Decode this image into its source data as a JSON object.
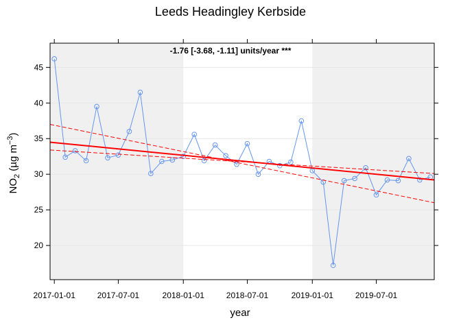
{
  "chart_data": {
    "type": "line",
    "title": "Leeds Headingley Kerbside",
    "annotation": "-1.76 [-3.68, -1.11] units/year ***",
    "annotation_color": "#007a00",
    "xlabel": "year",
    "ylabel_parts": [
      "NO",
      "2",
      " (µg m",
      "−3",
      ")"
    ],
    "x": [
      "2017-01-01",
      "2017-02-01",
      "2017-03-01",
      "2017-04-01",
      "2017-05-01",
      "2017-06-01",
      "2017-07-01",
      "2017-08-01",
      "2017-09-01",
      "2017-10-01",
      "2017-11-01",
      "2017-12-01",
      "2018-01-01",
      "2018-02-01",
      "2018-03-01",
      "2018-04-01",
      "2018-05-01",
      "2018-06-01",
      "2018-07-01",
      "2018-08-01",
      "2018-09-01",
      "2018-10-01",
      "2018-11-01",
      "2018-12-01",
      "2019-01-01",
      "2019-02-01",
      "2019-03-01",
      "2019-04-01",
      "2019-05-01",
      "2019-06-01",
      "2019-07-01",
      "2019-08-01",
      "2019-09-01",
      "2019-10-01",
      "2019-11-01",
      "2019-12-01"
    ],
    "series": [
      {
        "color": "#6495ed",
        "values": [
          46.2,
          32.4,
          33.3,
          31.9,
          39.5,
          32.3,
          32.7,
          36.0,
          41.5,
          30.1,
          31.8,
          32.0,
          32.5,
          35.6,
          31.9,
          34.1,
          32.6,
          31.4,
          34.3,
          30.0,
          31.8,
          31.2,
          31.7,
          37.5,
          30.5,
          28.9,
          17.2,
          29.1,
          29.4,
          30.9,
          27.1,
          29.2,
          29.1,
          32.2,
          29.2,
          29.6
        ]
      }
    ],
    "trend_lines": [
      {
        "x": [
          "2016-12-20",
          "2019-12-12"
        ],
        "values": [
          34.5,
          29.2
        ],
        "color": "#ff0000",
        "dashed": false
      },
      {
        "x": [
          "2016-12-20",
          "2019-12-12"
        ],
        "values": [
          37.0,
          26.0
        ],
        "color": "#ff0000",
        "dashed": true
      },
      {
        "x": [
          "2016-12-20",
          "2019-12-12"
        ],
        "values": [
          33.4,
          30.1
        ],
        "color": "#ff0000",
        "dashed": true
      }
    ],
    "shaded_periods": [
      [
        "2016-12-20",
        "2018-01-01"
      ],
      [
        "2019-01-01",
        "2019-12-12"
      ]
    ],
    "xlim": [
      "2016-12-20",
      "2019-12-12"
    ],
    "ylim": [
      15.2,
      48.4
    ],
    "xticks": [
      "2017-01-01",
      "2017-07-01",
      "2018-01-01",
      "2018-07-01",
      "2019-01-01",
      "2019-07-01"
    ],
    "yticks": [
      20,
      25,
      30,
      35,
      40,
      45
    ],
    "grid": true
  }
}
